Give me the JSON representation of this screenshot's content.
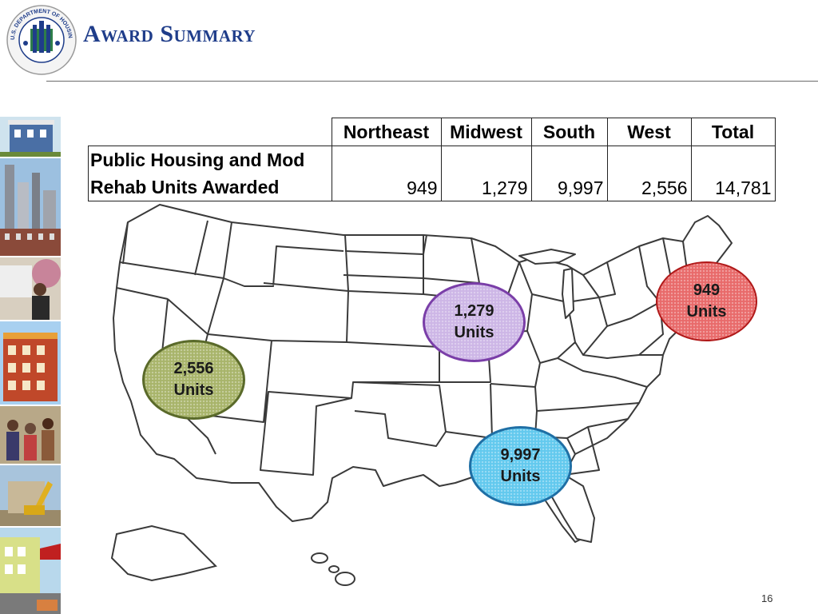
{
  "slide": {
    "title": "Award Summary",
    "page_number": "16"
  },
  "seal": {
    "text": "U.S. DEPARTMENT OF HOUSING AND URBAN DEVELOPMENT"
  },
  "table": {
    "columns": [
      "Northeast",
      "Midwest",
      "South",
      "West",
      "Total"
    ],
    "row_label_line1": "Public Housing and Mod",
    "row_label_line2": "Rehab Units Awarded",
    "values": [
      "949",
      "1,279",
      "9,997",
      "2,556",
      "14,781"
    ]
  },
  "callouts": {
    "northeast": {
      "value": "949",
      "unit": "Units",
      "color": "#e86a6a"
    },
    "midwest": {
      "value": "1,279",
      "unit": "Units",
      "color": "#cdb6e6"
    },
    "west": {
      "value": "2,556",
      "unit": "Units",
      "color": "#a8b46a"
    },
    "south": {
      "value": "9,997",
      "unit": "Units",
      "color": "#62c9ee"
    }
  },
  "colors": {
    "title": "#1f3d8a",
    "rule": "#6b6b6b"
  }
}
